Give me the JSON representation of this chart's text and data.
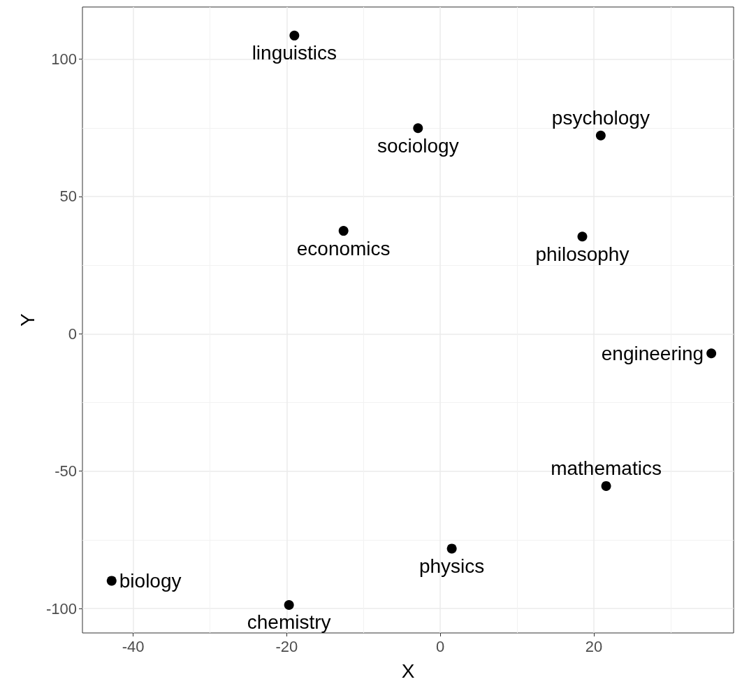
{
  "chart_data": {
    "type": "scatter",
    "xlabel": "X",
    "ylabel": "Y",
    "xlim": [
      -46.6,
      38.2
    ],
    "ylim": [
      -108.9,
      119
    ],
    "xticks": [
      -40,
      -20,
      0,
      20
    ],
    "yticks": [
      -100,
      -50,
      0,
      50,
      100
    ],
    "grid": true,
    "marker": "circle",
    "series": [
      {
        "name": "linguistics",
        "color": "#000000",
        "x": [
          -19.0
        ],
        "values": [
          108.6
        ]
      },
      {
        "name": "sociology",
        "color": "#000000",
        "x": [
          -2.9
        ],
        "values": [
          74.9
        ]
      },
      {
        "name": "psychology",
        "color": "#000000",
        "x": [
          20.9
        ],
        "values": [
          72.2
        ]
      },
      {
        "name": "economics",
        "color": "#000000",
        "x": [
          -12.6
        ],
        "values": [
          37.5
        ]
      },
      {
        "name": "philosophy",
        "color": "#000000",
        "x": [
          18.5
        ],
        "values": [
          35.4
        ]
      },
      {
        "name": "engineering",
        "color": "#000000",
        "x": [
          35.3
        ],
        "values": [
          -7.1
        ]
      },
      {
        "name": "mathematics",
        "color": "#000000",
        "x": [
          21.6
        ],
        "values": [
          -55.4
        ]
      },
      {
        "name": "physics",
        "color": "#000000",
        "x": [
          1.5
        ],
        "values": [
          -78.2
        ]
      },
      {
        "name": "biology",
        "color": "#000000",
        "x": [
          -42.8
        ],
        "values": [
          -89.9
        ]
      },
      {
        "name": "chemistry",
        "color": "#000000",
        "x": [
          -19.7
        ],
        "values": [
          -98.7
        ]
      }
    ]
  }
}
